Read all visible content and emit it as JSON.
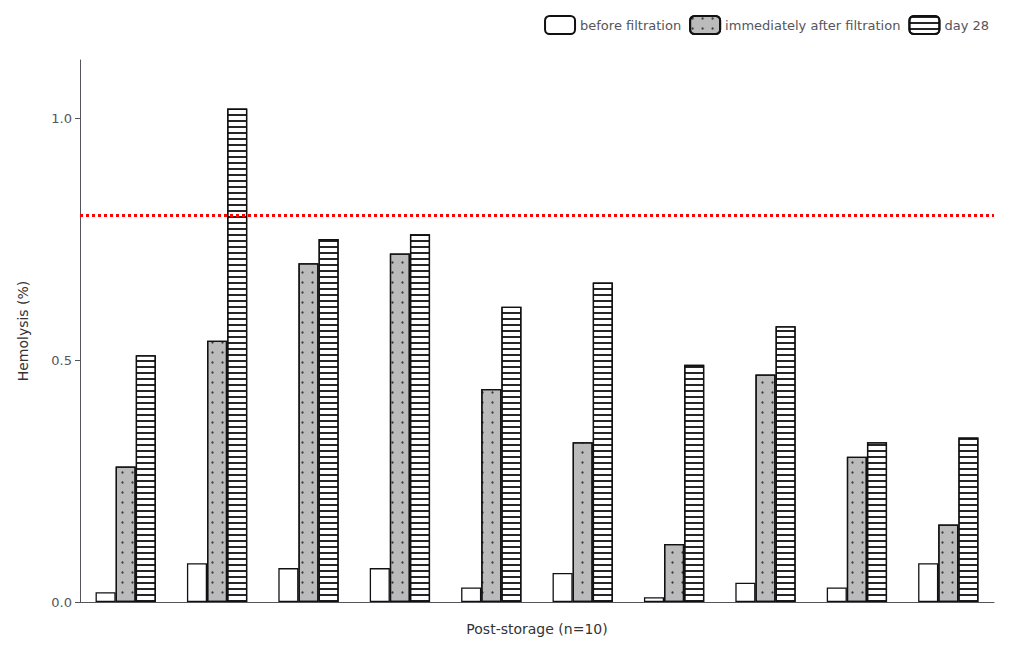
{
  "chart_data": {
    "type": "bar",
    "xlabel": "Post-storage (n=10)",
    "ylabel": "Hemolysis (%)",
    "categories": [
      null,
      null,
      null,
      null,
      null,
      null,
      null,
      null,
      null,
      null
    ],
    "series": [
      {
        "name": "before filtration",
        "color": "#ffffff",
        "values": [
          0.02,
          0.08,
          0.07,
          0.07,
          0.03,
          0.06,
          0.01,
          0.04,
          0.03,
          0.08
        ]
      },
      {
        "name": "immediately after filtration",
        "color": "#bbbbbb",
        "values": [
          0.28,
          0.54,
          0.7,
          0.72,
          0.44,
          0.33,
          0.12,
          0.47,
          0.3,
          0.16
        ]
      },
      {
        "name": "day 28",
        "color": "#ffffff",
        "values": [
          0.51,
          1.02,
          0.75,
          0.76,
          0.61,
          0.66,
          0.49,
          0.57,
          0.33,
          0.34
        ]
      }
    ],
    "edge_color": "#111111",
    "reference_line": {
      "y": 0.8,
      "color": "#ff0000",
      "line_style": "dotted"
    },
    "ylim": [
      0,
      1.12
    ],
    "yticks": [
      {
        "value": 0,
        "label": "0.0"
      },
      0.5,
      {
        "value": 1,
        "label": "1.0"
      }
    ],
    "grid": false,
    "legend": "upper right",
    "tick_labels": "y"
  }
}
